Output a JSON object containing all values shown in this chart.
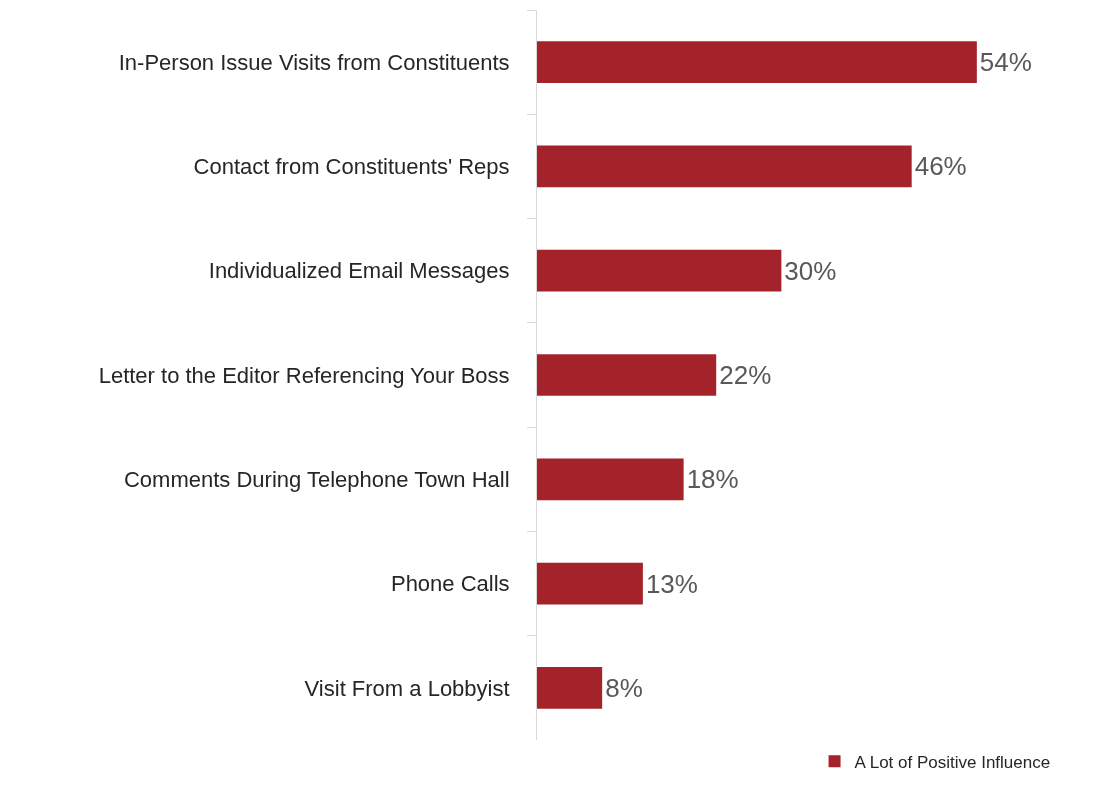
{
  "chart_data": {
    "type": "bar",
    "orientation": "horizontal",
    "categories": [
      "In-Person Issue Visits from Constituents",
      "Contact from Constituents' Reps",
      "Individualized Email Messages",
      "Letter to the Editor Referencing Your Boss",
      "Comments During Telephone Town Hall",
      "Phone Calls",
      "Visit From a Lobbyist"
    ],
    "series": [
      {
        "name": "A Lot of Positive Influence",
        "color": "#a4232b",
        "values": [
          54,
          46,
          30,
          22,
          18,
          13,
          8
        ],
        "value_labels": [
          "54%",
          "46%",
          "30%",
          "22%",
          "18%",
          "13%",
          "8%"
        ]
      }
    ],
    "tick_labels": "y",
    "legend": "bottom right",
    "grid": false
  }
}
